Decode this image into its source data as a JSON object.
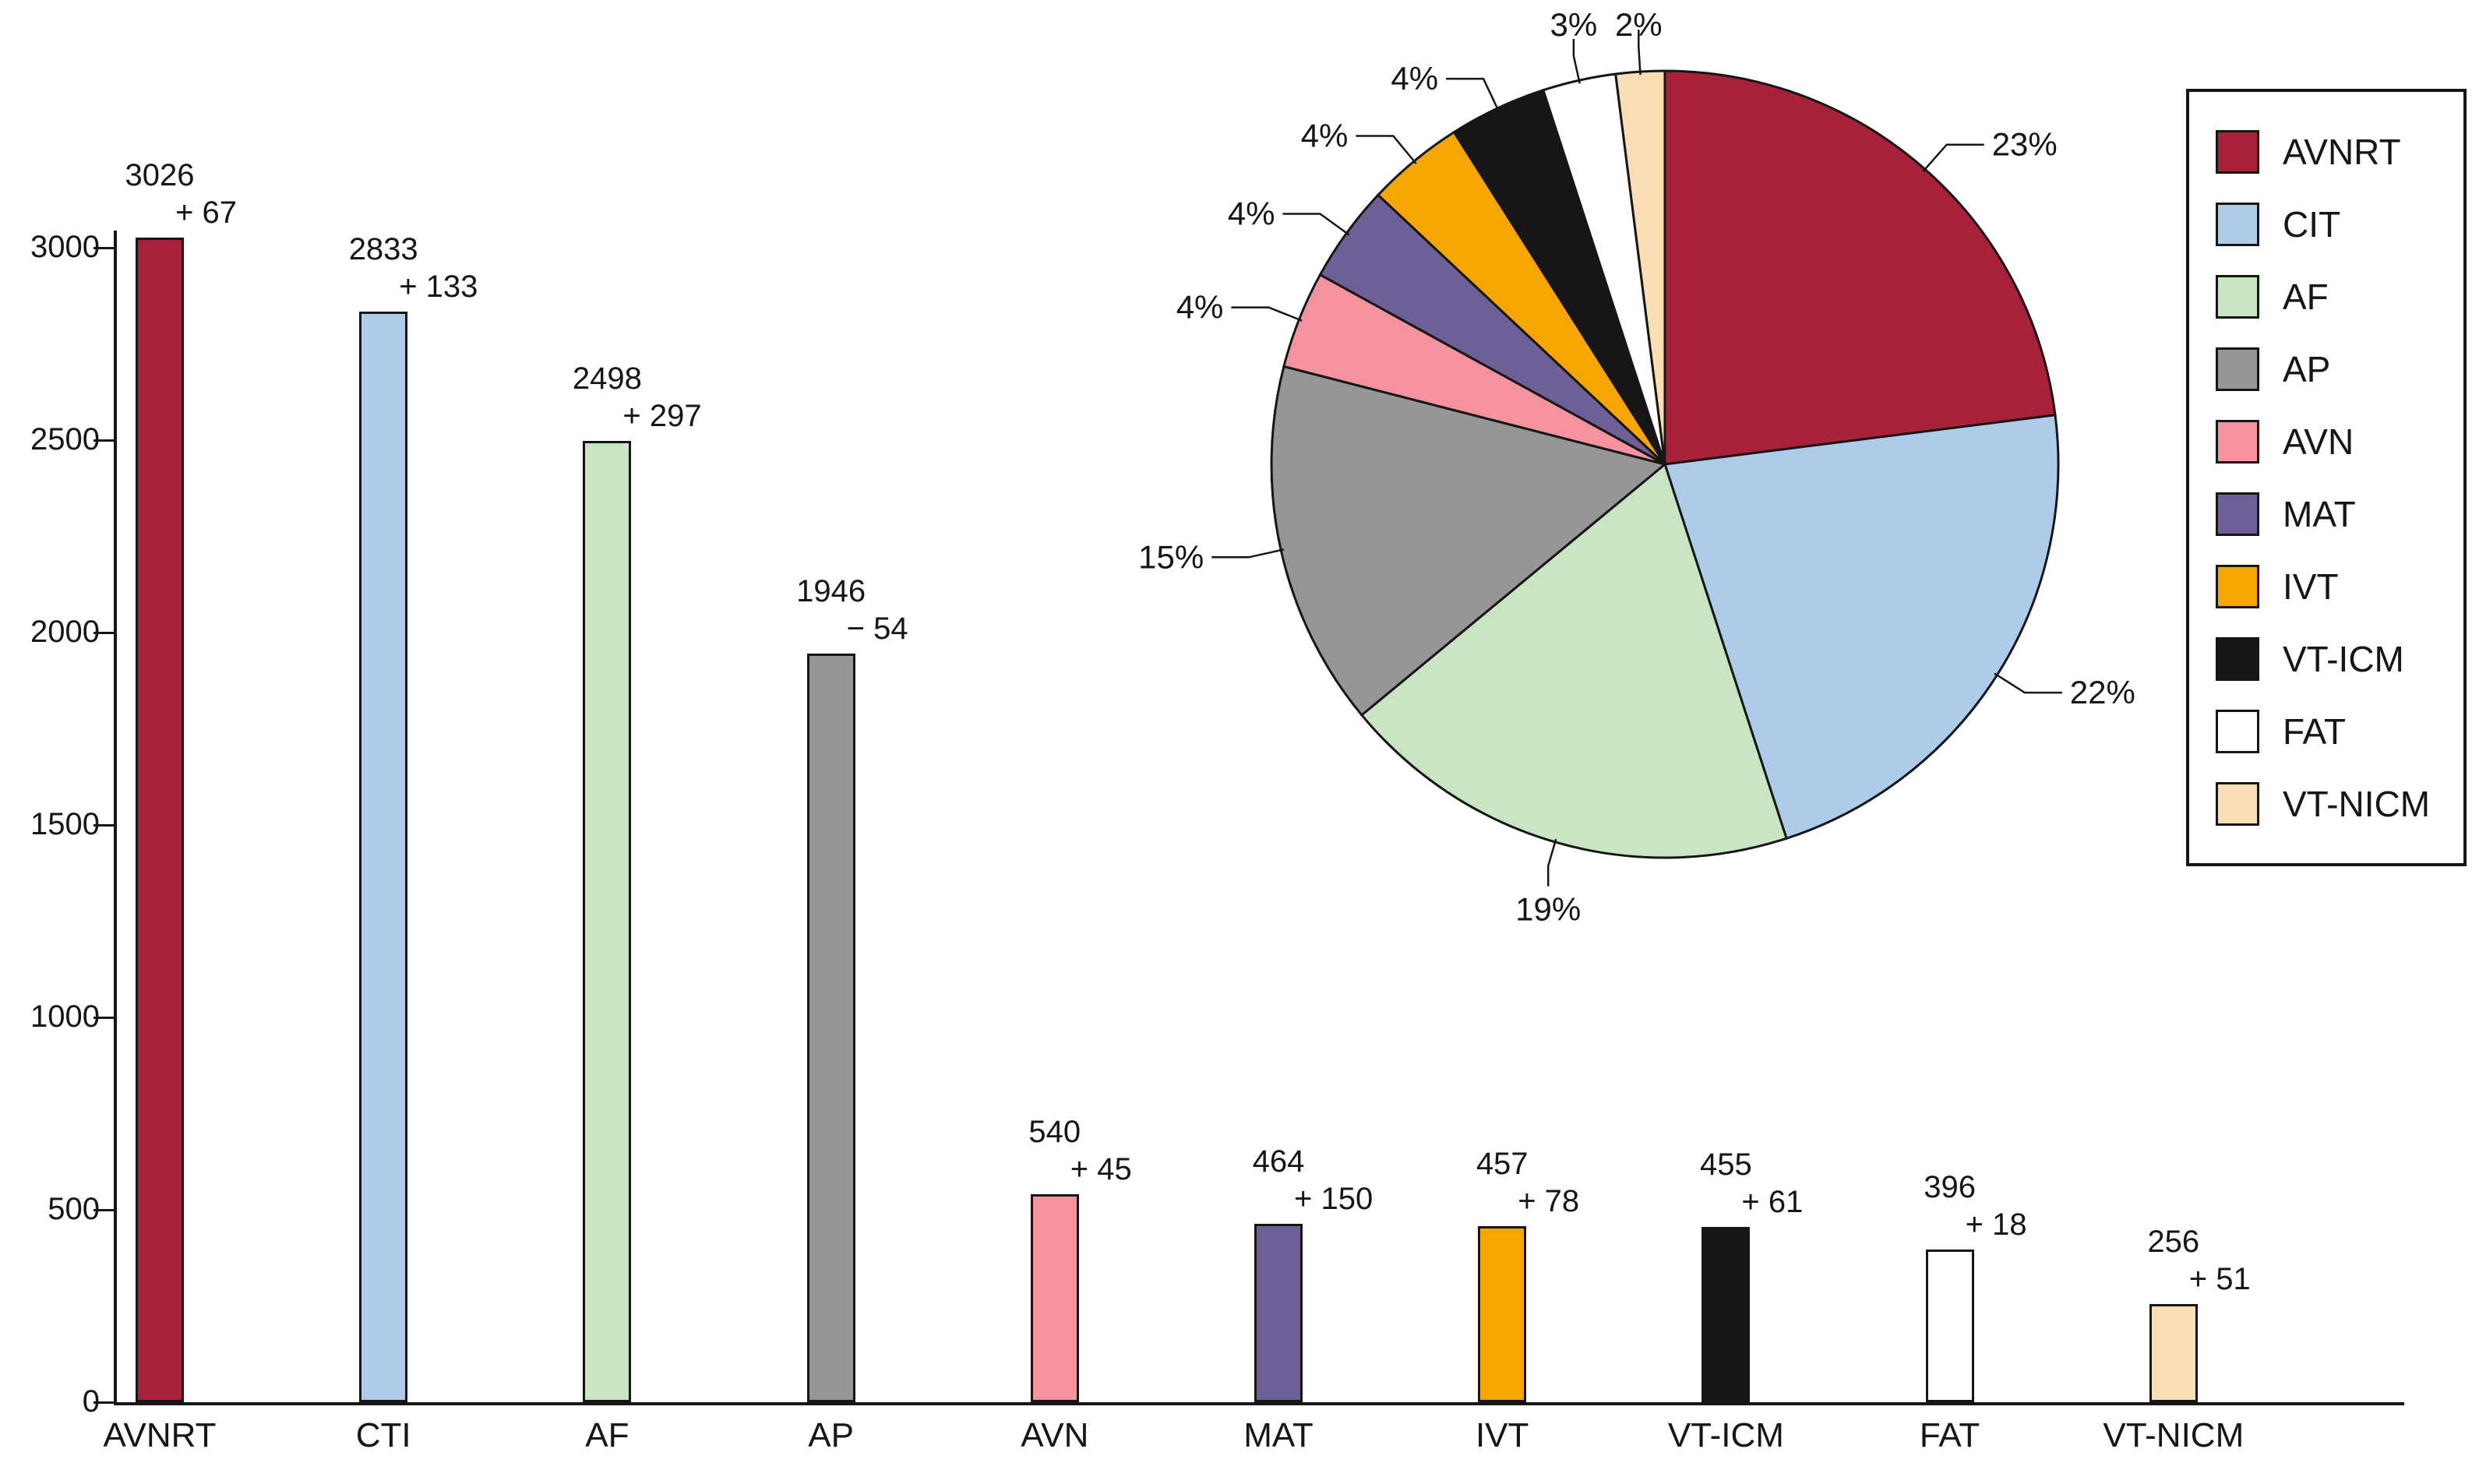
{
  "chart_data": [
    {
      "type": "bar",
      "categories": [
        "AVNRT",
        "CTI",
        "AF",
        "AP",
        "AVN",
        "MAT",
        "IVT",
        "VT-ICM",
        "FAT",
        "VT-NICM"
      ],
      "values": [
        3026,
        2833,
        2498,
        1946,
        540,
        464,
        457,
        455,
        396,
        256
      ],
      "delta_labels": [
        "+ 67",
        "+ 133",
        "+ 297",
        "− 54",
        "+ 45",
        "+ 150",
        "+ 78",
        "+ 61",
        "+ 18",
        "+ 51"
      ],
      "colors": [
        "#A62139",
        "#AECCEA",
        "#C9E5C4",
        "#969696",
        "#F5929F",
        "#6E6096",
        "#F7A500",
        "#161616",
        "#FFFFFF",
        "#FBDDB3"
      ],
      "title": "",
      "xlabel": "",
      "ylabel": "",
      "ylim": [
        0,
        3000
      ],
      "yticks": [
        0,
        500,
        1000,
        1500,
        2000,
        2500,
        3000
      ],
      "grid": false
    },
    {
      "type": "pie",
      "labels": [
        "AVNRT",
        "CIT",
        "AF",
        "AP",
        "AVN",
        "MAT",
        "IVT",
        "VT-ICM",
        "FAT",
        "VT-NICM"
      ],
      "values": [
        23,
        22,
        19,
        15,
        4,
        4,
        4,
        4,
        3,
        2
      ],
      "percent_labels": [
        "23%",
        "22%",
        "19%",
        "15%",
        "4%",
        "4%",
        "4%",
        "4%",
        "3%",
        "2%"
      ],
      "colors": [
        "#A62139",
        "#AECCEA",
        "#C9E5C4",
        "#969696",
        "#F5929F",
        "#6E6096",
        "#F7A500",
        "#161616",
        "#FFFFFF",
        "#FBDDB3"
      ],
      "start_angle_deg": 0,
      "direction": "clockwise",
      "legend_position": "right"
    }
  ]
}
